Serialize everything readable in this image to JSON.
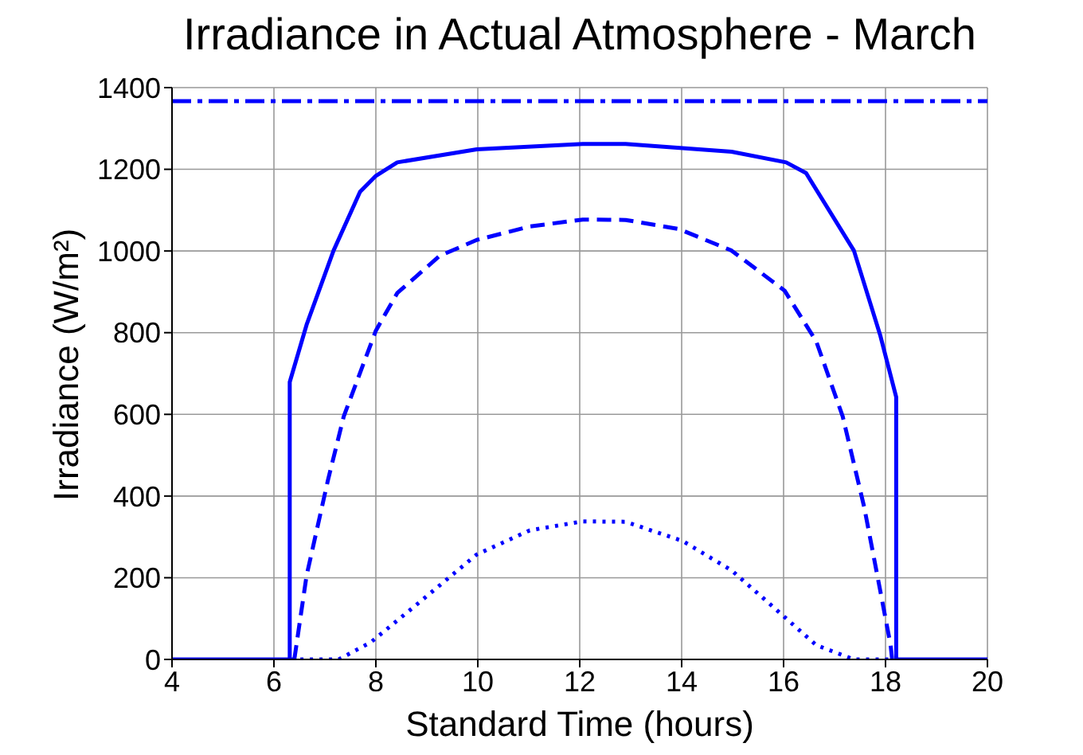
{
  "chart_data": {
    "type": "line",
    "title": "Irradiance in Actual Atmosphere - March",
    "xlabel": "Standard Time (hours)",
    "ylabel": "Irradiance (W/m²)",
    "xlim": [
      4,
      20
    ],
    "xticks": [
      4,
      6,
      8,
      10,
      12,
      14,
      16,
      18,
      20
    ],
    "ylim": [
      0,
      1400
    ],
    "yticks": [
      0,
      200,
      400,
      600,
      800,
      1000,
      1200,
      1400
    ],
    "grid": true,
    "legend": false,
    "marker": "none",
    "series": [
      {
        "color": "#0000ff",
        "line_style": "dashdot",
        "x": [
          4,
          20
        ],
        "values": [
          1367,
          1367
        ]
      },
      {
        "color": "#0000ff",
        "line_style": "solid",
        "x": [
          4,
          6.31,
          6.31,
          6.64,
          7.17,
          7.69,
          8.0,
          8.42,
          9.98,
          12.06,
          12.9,
          14.98,
          16.05,
          16.44,
          17.38,
          17.9,
          18.21,
          18.21,
          20
        ],
        "values": [
          0,
          0,
          679,
          819,
          1001,
          1145,
          1184,
          1217,
          1249,
          1262,
          1262,
          1243,
          1217,
          1191,
          1001,
          792,
          642,
          0,
          0
        ]
      },
      {
        "color": "#0000ff",
        "line_style": "dashed",
        "x": [
          6.4,
          6.64,
          7.06,
          7.37,
          8.0,
          8.42,
          9.25,
          9.98,
          11.02,
          12.06,
          12.9,
          13.94,
          14.98,
          16.02,
          16.64,
          17.16,
          17.58,
          17.9,
          18.1,
          18.13
        ],
        "values": [
          0,
          205,
          439,
          595,
          805,
          897,
          988,
          1027,
          1060,
          1077,
          1076,
          1054,
          1001,
          903,
          779,
          595,
          374,
          166,
          35,
          0
        ]
      },
      {
        "color": "#0000ff",
        "line_style": "dotted",
        "x": [
          6.33,
          7.27,
          7.9,
          8.73,
          9.98,
          11.02,
          12.06,
          12.9,
          14.02,
          14.98,
          15.81,
          16.64,
          17.38,
          18.15
        ],
        "values": [
          0,
          0,
          42,
          127,
          257,
          316,
          338,
          337,
          290,
          218,
          127,
          35,
          0,
          0
        ]
      }
    ]
  }
}
